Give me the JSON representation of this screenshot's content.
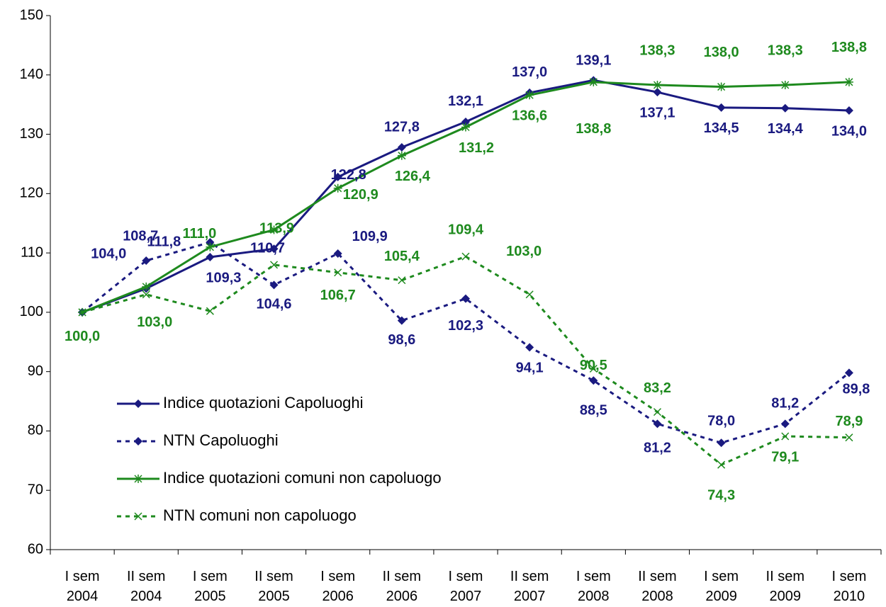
{
  "chart_data": {
    "type": "line",
    "categories": [
      "I sem\n2004",
      "II sem\n2004",
      "I sem\n2005",
      "II sem\n2005",
      "I sem\n2006",
      "II sem\n2006",
      "I sem\n2007",
      "II sem\n2007",
      "I sem\n2008",
      "II sem\n2008",
      "I sem\n2009",
      "II sem\n2009",
      "I sem\n2010"
    ],
    "ylim": [
      60,
      150
    ],
    "yticks": [
      60,
      70,
      80,
      90,
      100,
      110,
      120,
      130,
      140,
      150
    ],
    "grid": false,
    "series": [
      {
        "name": "Indice quotazioni Capoluoghi",
        "color": "#1a1a80",
        "dash": false,
        "marker": "diamond",
        "values": [
          100.0,
          104.0,
          109.3,
          110.7,
          122.8,
          127.8,
          132.1,
          137.0,
          139.1,
          137.1,
          134.5,
          134.4,
          134.0
        ],
        "value_labels": [
          null,
          "104,0",
          "109,3",
          "110,7",
          "122,8",
          "127,8",
          "132,1",
          "137,0",
          "139,1",
          "137,1",
          "134,5",
          "134,4",
          "134,0"
        ]
      },
      {
        "name": "NTN Capoluoghi",
        "color": "#1a1a80",
        "dash": true,
        "marker": "diamond",
        "values": [
          100.0,
          108.7,
          111.8,
          104.6,
          109.9,
          98.6,
          102.3,
          94.1,
          88.5,
          81.2,
          78.0,
          81.2,
          89.8
        ],
        "value_labels": [
          null,
          "108,7",
          "111,8",
          "104,6",
          "109,9",
          "98,6",
          "102,3",
          "94,1",
          "88,5",
          "81,2",
          "78,0",
          "81,2",
          "89,8"
        ]
      },
      {
        "name": "Indice quotazioni comuni non capoluogo",
        "color": "#1e8a1e",
        "dash": false,
        "marker": "star",
        "values": [
          100.0,
          104.3,
          111.0,
          113.9,
          120.9,
          126.4,
          131.2,
          136.6,
          138.8,
          138.3,
          138.0,
          138.3,
          138.8
        ],
        "value_labels": [
          "100,0",
          null,
          "111,0",
          "113,9",
          "120,9",
          "126,4",
          "131,2",
          "136,6",
          "138,8",
          "138,3",
          "138,0",
          "138,3",
          "138,8"
        ]
      },
      {
        "name": "NTN comuni non capoluogo",
        "color": "#1e8a1e",
        "dash": true,
        "marker": "x",
        "values": [
          100.0,
          103.0,
          100.2,
          108.0,
          106.7,
          105.4,
          109.4,
          103.0,
          90.5,
          83.2,
          74.3,
          79.1,
          78.9
        ],
        "value_labels": [
          null,
          "103,0",
          null,
          null,
          "106,7",
          "105,4",
          "109,4",
          "103,0",
          "90,5",
          "83,2",
          "74,3",
          "79,1",
          "78,9"
        ]
      }
    ]
  }
}
